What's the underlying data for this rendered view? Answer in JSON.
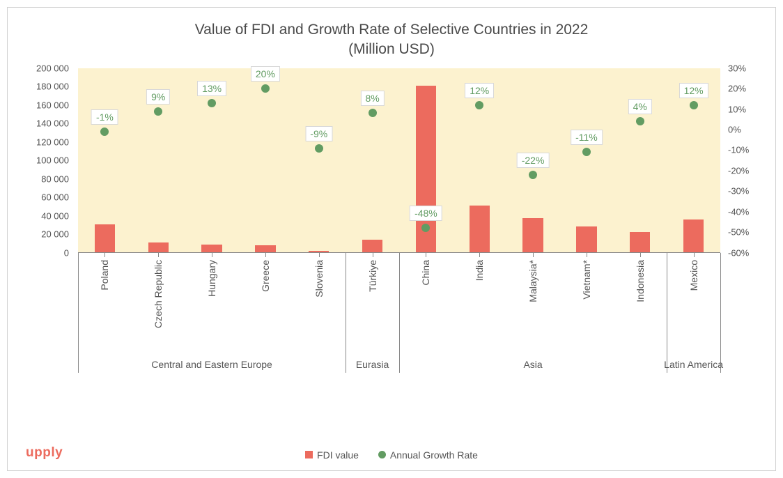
{
  "chart": {
    "type": "combo-bar-scatter",
    "title_line1": "Value of FDI and Growth Rate of Selective Countries in 2022",
    "title_line2": "(Million USD)",
    "title_fontsize": 21,
    "title_color": "#4a4a4a",
    "background_color": "#ffffff",
    "plot_background_color": "#fcf2cf",
    "border_color": "#d0d0d0",
    "axis_color": "#888888",
    "tick_font_color": "#555555",
    "tick_fontsize": 13,
    "categories": [
      "Poland",
      "Czech Republic",
      "Hungary",
      "Greece",
      "Slovenia",
      "Türkiye",
      "China",
      "India",
      "Malaysia*",
      "Vietnam*",
      "Indonesia",
      "Mexico"
    ],
    "groups": [
      {
        "label": "Central and Eastern Europe",
        "start": 0,
        "end": 5
      },
      {
        "label": "Eurasia",
        "start": 5,
        "end": 6
      },
      {
        "label": "Asia",
        "start": 6,
        "end": 11
      },
      {
        "label": "Latin America",
        "start": 11,
        "end": 12
      }
    ],
    "bars": {
      "label": "FDI value",
      "color": "#ec6b5e",
      "width_fraction": 0.38,
      "values": [
        30000,
        10000,
        8000,
        7000,
        1500,
        13000,
        180000,
        50000,
        37000,
        28000,
        22000,
        35000
      ]
    },
    "points": {
      "label": "Annual Growth Rate",
      "color": "#629c62",
      "marker_size": 12,
      "label_fontsize": 14,
      "label_border_color": "#d8d8d8",
      "label_bg_color": "#ffffff",
      "values": [
        -1,
        9,
        13,
        20,
        -9,
        8,
        -48,
        12,
        -22,
        -11,
        4,
        12
      ],
      "display": [
        "-1%",
        "9%",
        "13%",
        "20%",
        "-9%",
        "8%",
        "-48%",
        "12%",
        "-22%",
        "-11%",
        "4%",
        "12%"
      ]
    },
    "y_left": {
      "min": 0,
      "max": 200000,
      "step": 20000,
      "ticks": [
        "0",
        "20 000",
        "40 000",
        "60 000",
        "80 000",
        "100 000",
        "120 000",
        "140 000",
        "160 000",
        "180 000",
        "200 000"
      ]
    },
    "y_right": {
      "min": -60,
      "max": 30,
      "step": 10,
      "ticks": [
        "-60%",
        "-50%",
        "-40%",
        "-30%",
        "-20%",
        "-10%",
        "0%",
        "10%",
        "20%",
        "30%"
      ]
    },
    "legend": {
      "fontsize": 14,
      "color": "#555555"
    },
    "logo": {
      "text": "upply",
      "color": "#ec6b5e",
      "fontsize": 19
    }
  }
}
